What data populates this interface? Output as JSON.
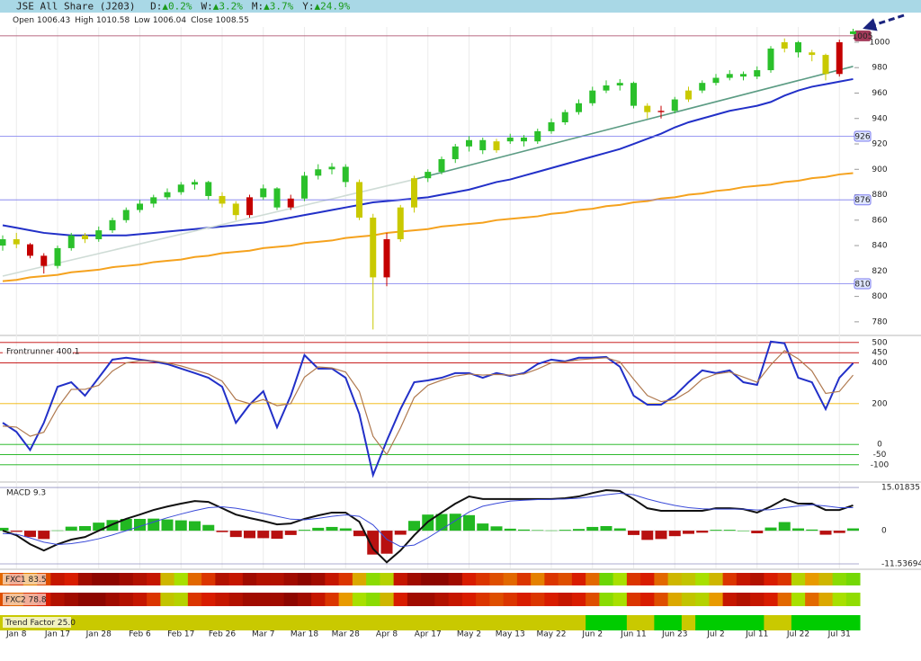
{
  "header": {
    "title": "JSE All Share (J203)",
    "stats": [
      {
        "label": "D:",
        "change": "▲0.2%"
      },
      {
        "label": "W:",
        "change": "▲3.2%"
      },
      {
        "label": "M:",
        "change": "▲3.7%"
      },
      {
        "label": "Y:",
        "change": "▲24.9%"
      }
    ]
  },
  "chart_data": {
    "type": "candlestick",
    "ohlc_labels": [
      "Open",
      "High",
      "Low",
      "Close"
    ],
    "categories": [
      null,
      "Jan 8",
      null,
      null,
      "Jan 17",
      null,
      null,
      "Jan 28",
      null,
      null,
      "Feb 6",
      null,
      null,
      "Feb 17",
      null,
      null,
      "Feb 26",
      null,
      null,
      "Mar 7",
      null,
      null,
      "Mar 18",
      null,
      null,
      "Mar 28",
      null,
      null,
      "Apr 8",
      null,
      null,
      "Apr 17",
      null,
      null,
      "May 2",
      null,
      null,
      "May 13",
      null,
      null,
      "May 22",
      null,
      null,
      "Jun 2",
      null,
      null,
      "Jun 11",
      null,
      null,
      "Jun 23",
      null,
      null,
      "Jul 2",
      null,
      null,
      "Jul 11",
      null,
      null,
      "Jul 22",
      null,
      null,
      "Jul 31",
      null
    ],
    "candles": [
      [
        840,
        848,
        836,
        845
      ],
      [
        845,
        850,
        838,
        841
      ],
      [
        841,
        842,
        830,
        832
      ],
      [
        832,
        834,
        818,
        824
      ],
      [
        824,
        840,
        822,
        838
      ],
      [
        838,
        850,
        836,
        848
      ],
      [
        848,
        850,
        842,
        845
      ],
      [
        845,
        855,
        843,
        852
      ],
      [
        852,
        862,
        850,
        860
      ],
      [
        860,
        870,
        858,
        868
      ],
      [
        868,
        876,
        866,
        873
      ],
      [
        873,
        880,
        870,
        878
      ],
      [
        878,
        885,
        876,
        882
      ],
      [
        882,
        890,
        880,
        888
      ],
      [
        888,
        892,
        884,
        890
      ],
      [
        890,
        891,
        876,
        879
      ],
      [
        879,
        882,
        870,
        873
      ],
      [
        873,
        875,
        860,
        864
      ],
      [
        864,
        880,
        862,
        878
      ],
      [
        878,
        888,
        876,
        885
      ],
      [
        885,
        886,
        868,
        870
      ],
      [
        870,
        880,
        868,
        877
      ],
      [
        877,
        898,
        875,
        895
      ],
      [
        895,
        904,
        892,
        900
      ],
      [
        900,
        905,
        896,
        902
      ],
      [
        902,
        904,
        886,
        890
      ],
      [
        890,
        892,
        860,
        862
      ],
      [
        862,
        865,
        774,
        815
      ],
      [
        815,
        850,
        808,
        845
      ],
      [
        845,
        872,
        843,
        870
      ],
      [
        870,
        895,
        866,
        893
      ],
      [
        893,
        900,
        890,
        898
      ],
      [
        898,
        910,
        896,
        908
      ],
      [
        908,
        920,
        905,
        918
      ],
      [
        918,
        926,
        914,
        923
      ],
      [
        923,
        925,
        912,
        915
      ],
      [
        915,
        924,
        913,
        922
      ],
      [
        922,
        928,
        920,
        925
      ],
      [
        925,
        927,
        918,
        922
      ],
      [
        922,
        932,
        920,
        930
      ],
      [
        930,
        940,
        928,
        937
      ],
      [
        937,
        947,
        935,
        945
      ],
      [
        945,
        955,
        943,
        952
      ],
      [
        952,
        965,
        950,
        962
      ],
      [
        962,
        970,
        960,
        966
      ],
      [
        966,
        971,
        962,
        968
      ],
      [
        968,
        969,
        948,
        950
      ],
      [
        950,
        952,
        940,
        945
      ],
      [
        945,
        950,
        940,
        946
      ],
      [
        946,
        957,
        944,
        955
      ],
      [
        955,
        965,
        953,
        962
      ],
      [
        962,
        970,
        960,
        968
      ],
      [
        968,
        975,
        966,
        972
      ],
      [
        972,
        978,
        970,
        975
      ],
      [
        975,
        977,
        970,
        973
      ],
      [
        973,
        981,
        971,
        978
      ],
      [
        978,
        997,
        976,
        995
      ],
      [
        995,
        1003,
        992,
        1000
      ],
      [
        1000,
        1001,
        988,
        992
      ],
      [
        992,
        994,
        985,
        990
      ],
      [
        990,
        991,
        970,
        975
      ],
      [
        975,
        1002,
        973,
        1000
      ],
      [
        1006.43,
        1010.58,
        1006.04,
        1008.55
      ]
    ],
    "candle_colors": "gyrrggygggGgggggyyrggrggggyyryygggggyggggggggggyrgyggggggygyyrgg",
    "palette": {
      "g": "#2bc02b",
      "G": "#2bc02b",
      "y": "#c9c900",
      "r": "#c40000"
    },
    "ylim": [
      770,
      1012
    ],
    "yticks": [
      780,
      800,
      820,
      840,
      860,
      880,
      900,
      920,
      940,
      960,
      980,
      1000
    ],
    "hlines": [
      {
        "value": 1005,
        "color": "#a33a5a"
      },
      {
        "value": 926,
        "color": "#7a7aee"
      },
      {
        "value": 876,
        "color": "#7a7aee"
      },
      {
        "value": 810,
        "color": "#7a7aee"
      }
    ],
    "series": [
      {
        "color": "#2230c8",
        "values": [
          856,
          854,
          852,
          850,
          849,
          848,
          848,
          848,
          848,
          848,
          849,
          850,
          851,
          852,
          853,
          854,
          855,
          856,
          857,
          858,
          860,
          862,
          864,
          866,
          868,
          870,
          872,
          874,
          875,
          876,
          877,
          878,
          880,
          882,
          884,
          887,
          890,
          892,
          895,
          898,
          901,
          904,
          907,
          910,
          913,
          916,
          920,
          924,
          928,
          933,
          937,
          940,
          943,
          946,
          948,
          950,
          953,
          958,
          962,
          965,
          967,
          969,
          971
        ]
      },
      {
        "color": "#f5a21e",
        "values": [
          812,
          813,
          815,
          816,
          817,
          819,
          820,
          821,
          823,
          824,
          825,
          827,
          828,
          829,
          831,
          832,
          834,
          835,
          836,
          838,
          839,
          840,
          842,
          843,
          844,
          846,
          847,
          848,
          850,
          851,
          852,
          853,
          855,
          856,
          857,
          858,
          860,
          861,
          862,
          863,
          865,
          866,
          868,
          869,
          871,
          872,
          874,
          875,
          877,
          878,
          880,
          881,
          883,
          884,
          886,
          887,
          888,
          890,
          891,
          893,
          894,
          896,
          897
        ]
      }
    ],
    "trendlines": [
      {
        "color": "#cfdcd6",
        "points": [
          [
            0,
            816
          ],
          [
            30,
            892
          ]
        ]
      },
      {
        "color": "#5c9c84",
        "points": [
          [
            30,
            892
          ],
          [
            62,
            981
          ]
        ]
      }
    ],
    "oscillator": {
      "label": "Frontrunner 400.1",
      "ylim": [
        -180,
        530
      ],
      "yticks": [
        500,
        450,
        400,
        200,
        0,
        -50,
        -100
      ],
      "tick_colors": [
        "#c00000",
        "#c00000",
        "#c00000",
        "#f0b400",
        "#10b010",
        "#10b010",
        "#10b010"
      ],
      "series": [
        {
          "color": "#2230c8",
          "values": [
            106,
            62,
            -27,
            106,
            283,
            305,
            239,
            327,
            416,
            425,
            416,
            407,
            394,
            372,
            350,
            327,
            283,
            106,
            195,
            261,
            84,
            239,
            438,
            372,
            372,
            327,
            150,
            -150,
            18,
            173,
            305,
            314,
            327,
            350,
            350,
            327,
            350,
            336,
            350,
            394,
            416,
            407,
            425,
            425,
            429,
            381,
            239,
            195,
            195,
            239,
            305,
            363,
            350,
            363,
            305,
            292,
            504,
            496,
            327,
            305,
            173,
            327,
            398
          ]
        },
        {
          "color": "#b07a50",
          "values": [
            90,
            85,
            40,
            60,
            180,
            270,
            270,
            290,
            360,
            400,
            410,
            410,
            400,
            385,
            365,
            345,
            310,
            220,
            200,
            220,
            190,
            200,
            330,
            380,
            375,
            355,
            260,
            40,
            -50,
            80,
            230,
            290,
            315,
            335,
            345,
            340,
            343,
            340,
            345,
            370,
            400,
            405,
            415,
            420,
            425,
            405,
            320,
            240,
            210,
            220,
            260,
            320,
            345,
            355,
            330,
            305,
            390,
            460,
            420,
            360,
            250,
            260,
            340
          ]
        }
      ]
    },
    "macd": {
      "label": "MACD 9.3",
      "ylim": [
        -13.1,
        16.6
      ],
      "yticks": [
        15.01835,
        0,
        -11.53694
      ],
      "series": [
        {
          "color": "#111111",
          "values": [
            0,
            -1.6,
            -4.7,
            -6.9,
            -4.7,
            -3.1,
            -2.2,
            0,
            2.2,
            4.1,
            5.6,
            7.2,
            8.4,
            9.4,
            10.3,
            10,
            7.8,
            5.6,
            4.4,
            3.4,
            2.2,
            2.5,
            4.1,
            5.3,
            6.3,
            6.3,
            3.1,
            -6.3,
            -11,
            -6.9,
            -1.6,
            3.1,
            6.3,
            9.4,
            11.9,
            11,
            11,
            11,
            11,
            11,
            11,
            11.3,
            11.9,
            13.1,
            14.1,
            13.8,
            11,
            7.8,
            6.9,
            6.9,
            6.9,
            6.9,
            7.8,
            7.8,
            7.5,
            6.3,
            8.4,
            11,
            9.4,
            9.4,
            7.2,
            7.2,
            8.8
          ]
        },
        {
          "color": "#3a4ad8",
          "values": [
            -1,
            -1.2,
            -2.5,
            -4,
            -4.8,
            -4.5,
            -3.8,
            -2.8,
            -1.5,
            0,
            1.5,
            3,
            4.5,
            5.8,
            7,
            8,
            8.3,
            7.8,
            7,
            6,
            5,
            4,
            3.8,
            4.3,
            5,
            5.5,
            5,
            2,
            -3,
            -5.5,
            -5,
            -2.5,
            0.5,
            3.5,
            6.5,
            8.5,
            9.5,
            10.3,
            10.6,
            10.8,
            10.9,
            11,
            11.3,
            11.8,
            12.5,
            13,
            12.5,
            11,
            9.8,
            8.8,
            8,
            7.6,
            7.5,
            7.5,
            7.5,
            7.2,
            7.3,
            8,
            8.6,
            9,
            8.6,
            8,
            8
          ]
        }
      ],
      "histogram": {
        "colors": [
          "#22b822",
          "#b81010"
        ],
        "values": [
          1,
          -0.4,
          -2.2,
          -2.9,
          0.1,
          1.4,
          1.6,
          2.8,
          3.7,
          4.1,
          4.1,
          4.2,
          3.9,
          3.6,
          3.3,
          2,
          -0.5,
          -2.2,
          -2.6,
          -2.6,
          -2.8,
          -1.5,
          0.3,
          1,
          1.3,
          0.8,
          -1.9,
          -8.3,
          -8,
          -1.4,
          3.4,
          5.6,
          5.8,
          5.9,
          5.4,
          2.5,
          1.5,
          0.7,
          0.4,
          0.2,
          0.1,
          0.3,
          0.6,
          1.3,
          1.6,
          0.8,
          -1.5,
          -3.2,
          -2.9,
          -1.9,
          -1.1,
          -0.7,
          0.3,
          0.3,
          0,
          -0.9,
          1.1,
          3,
          0.8,
          0.4,
          -1.4,
          -0.8,
          0.8
        ]
      }
    },
    "heatmaps": [
      {
        "label": "FXC1 83.5",
        "values": [
          40,
          30,
          45,
          35,
          20,
          25,
          10,
          5,
          5,
          10,
          15,
          20,
          60,
          75,
          40,
          30,
          15,
          20,
          10,
          15,
          15,
          10,
          5,
          10,
          20,
          30,
          55,
          80,
          70,
          20,
          10,
          5,
          5,
          10,
          25,
          30,
          35,
          40,
          30,
          45,
          30,
          35,
          25,
          40,
          85,
          75,
          30,
          25,
          40,
          60,
          65,
          75,
          60,
          30,
          20,
          15,
          25,
          30,
          70,
          50,
          60,
          80,
          83.5
        ]
      },
      {
        "label": "FXC2 78.8",
        "values": [
          35,
          40,
          30,
          25,
          15,
          10,
          5,
          5,
          10,
          15,
          20,
          30,
          65,
          70,
          30,
          25,
          20,
          15,
          10,
          10,
          10,
          5,
          10,
          20,
          30,
          50,
          75,
          80,
          60,
          25,
          10,
          10,
          15,
          20,
          25,
          30,
          35,
          30,
          25,
          30,
          25,
          20,
          25,
          35,
          80,
          75,
          30,
          25,
          35,
          55,
          65,
          70,
          50,
          20,
          15,
          20,
          25,
          40,
          75,
          40,
          55,
          75,
          78.8
        ]
      }
    ],
    "heat_vlim": [
      0,
      100
    ],
    "heat_colors": [
      "#7a0000",
      "#d81c00",
      "#e89a00",
      "#a8e000",
      "#10c810"
    ],
    "trend_factor": {
      "label": "Trend Factor 25.0",
      "states": "yyyyyyyyyyyyyyyyyyyyyyyyyyyyyyyyyyyyyyyyyyygggyyggygggggyyggggg",
      "palette": {
        "g": "#00cc00",
        "y": "#c9c900"
      }
    }
  }
}
